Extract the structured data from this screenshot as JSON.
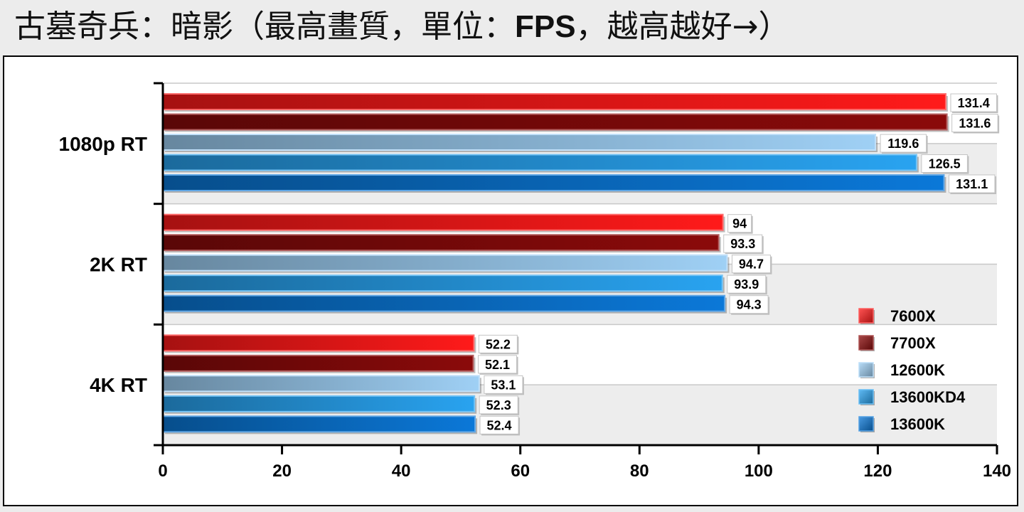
{
  "title": {
    "prefix": "古墓奇兵：暗影（最高畫質，單位：",
    "unit": "FPS",
    "suffix": "，越高越好→）"
  },
  "chart_data": {
    "type": "bar",
    "orientation": "horizontal",
    "title": "古墓奇兵：暗影（最高畫質，單位：FPS，越高越好→）",
    "categories": [
      "1080p RT",
      "2K RT",
      "4K RT"
    ],
    "series": [
      {
        "name": "7600X",
        "values": [
          131.4,
          94,
          52.2
        ],
        "color": "#ff1a1a"
      },
      {
        "name": "7700X",
        "values": [
          131.6,
          93.3,
          52.1
        ],
        "color": "#8b0a0a"
      },
      {
        "name": "12600K",
        "values": [
          119.6,
          94.7,
          53.1
        ],
        "color": "#9fd0f5"
      },
      {
        "name": "13600KD4",
        "values": [
          126.5,
          93.9,
          52.3
        ],
        "color": "#29a3f0"
      },
      {
        "name": "13600K",
        "values": [
          131.1,
          94.3,
          52.4
        ],
        "color": "#0b78d8"
      }
    ],
    "xlim": [
      0,
      140
    ],
    "xticks": [
      0,
      20,
      40,
      60,
      80,
      100,
      120,
      140
    ],
    "grid": true,
    "legend": "bottom-right"
  }
}
